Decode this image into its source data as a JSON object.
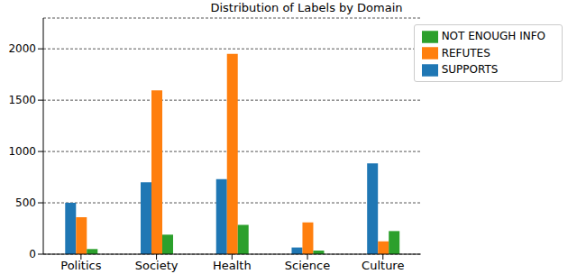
{
  "chart_data": {
    "type": "bar",
    "title": "Distribution of Labels by Domain",
    "categories": [
      "Politics",
      "Society",
      "Health",
      "Science",
      "Culture"
    ],
    "series": [
      {
        "name": "SUPPORTS",
        "color": "#1f77b4",
        "values": [
          500,
          700,
          730,
          65,
          885
        ]
      },
      {
        "name": "REFUTES",
        "color": "#ff7f0e",
        "values": [
          360,
          1595,
          1950,
          310,
          125
        ]
      },
      {
        "name": "NOT ENOUGH INFO",
        "color": "#2ca02c",
        "values": [
          50,
          190,
          285,
          35,
          225
        ]
      }
    ],
    "ylim": [
      0,
      2300
    ],
    "yticks": [
      0,
      500,
      1000,
      1500,
      2000
    ],
    "grid": true,
    "legend": "upper right"
  }
}
